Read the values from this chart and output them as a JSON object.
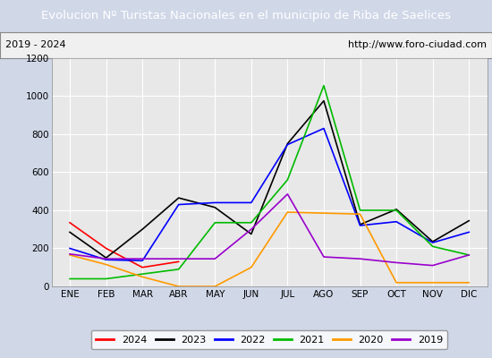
{
  "title": "Evolucion Nº Turistas Nacionales en el municipio de Riba de Saelices",
  "subtitle_left": "2019 - 2024",
  "subtitle_right": "http://www.foro-ciudad.com",
  "title_bg_color": "#4472c4",
  "title_text_color": "#ffffff",
  "months": [
    "ENE",
    "FEB",
    "MAR",
    "ABR",
    "MAY",
    "JUN",
    "JUL",
    "AGO",
    "SEP",
    "OCT",
    "NOV",
    "DIC"
  ],
  "series": {
    "2024": {
      "color": "#ff0000",
      "data": [
        335,
        200,
        100,
        130,
        null,
        null,
        null,
        null,
        null,
        null,
        null,
        null
      ]
    },
    "2023": {
      "color": "#000000",
      "data": [
        285,
        150,
        300,
        465,
        415,
        275,
        750,
        975,
        325,
        405,
        235,
        345
      ]
    },
    "2022": {
      "color": "#0000ff",
      "data": [
        200,
        140,
        135,
        430,
        440,
        440,
        745,
        830,
        320,
        340,
        230,
        285
      ]
    },
    "2021": {
      "color": "#00bb00",
      "data": [
        40,
        40,
        65,
        90,
        335,
        335,
        560,
        1055,
        400,
        400,
        210,
        165
      ]
    },
    "2020": {
      "color": "#ff9900",
      "data": [
        165,
        115,
        50,
        0,
        0,
        100,
        390,
        385,
        380,
        20,
        20,
        20
      ]
    },
    "2019": {
      "color": "#9900cc",
      "data": [
        170,
        145,
        145,
        145,
        145,
        300,
        485,
        155,
        145,
        125,
        110,
        165
      ]
    }
  },
  "ylim": [
    0,
    1200
  ],
  "yticks": [
    0,
    200,
    400,
    600,
    800,
    1000,
    1200
  ],
  "plot_bg_color": "#e8e8e8",
  "outer_bg_color": "#d0d8e8",
  "grid_color": "#ffffff",
  "subtitle_box_color": "#f0f0f0",
  "legend_order": [
    "2024",
    "2023",
    "2022",
    "2021",
    "2020",
    "2019"
  ]
}
